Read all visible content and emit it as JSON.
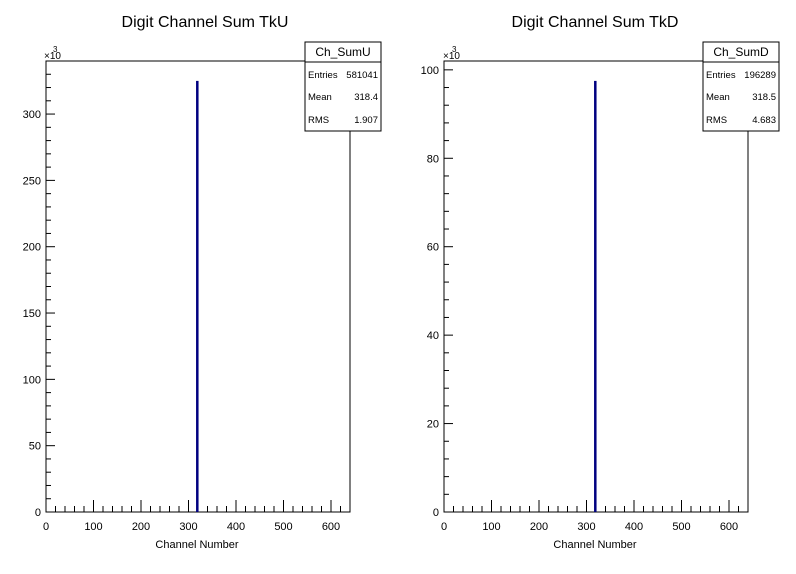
{
  "chart_data": [
    {
      "type": "bar",
      "title": "Digit Channel Sum TkU",
      "xlabel": "Channel Number",
      "ylabel": "",
      "y_multiplier_label": "×10",
      "y_multiplier_exp": "3",
      "xlim": [
        0,
        640
      ],
      "ylim": [
        0,
        340
      ],
      "x_ticks": [
        0,
        100,
        200,
        300,
        400,
        500,
        600
      ],
      "y_ticks": [
        0,
        50,
        100,
        150,
        200,
        250,
        300
      ],
      "series": [
        {
          "x": [
            318
          ],
          "values": [
            325
          ],
          "color": "#000080"
        }
      ],
      "stats": {
        "name": "Ch_SumU",
        "rows": [
          {
            "label": "Entries",
            "value": "581041"
          },
          {
            "label": "Mean",
            "value": "318.4"
          },
          {
            "label": "RMS",
            "value": "1.907"
          }
        ]
      },
      "grid": false,
      "legend": "top-right"
    },
    {
      "type": "bar",
      "title": "Digit Channel Sum TkD",
      "xlabel": "Channel Number",
      "ylabel": "",
      "y_multiplier_label": "×10",
      "y_multiplier_exp": "3",
      "xlim": [
        0,
        640
      ],
      "ylim": [
        0,
        102
      ],
      "x_ticks": [
        0,
        100,
        200,
        300,
        400,
        500,
        600
      ],
      "y_ticks": [
        0,
        20,
        40,
        60,
        80,
        100
      ],
      "series": [
        {
          "x": [
            318
          ],
          "values": [
            97.5
          ],
          "color": "#000080"
        }
      ],
      "stats": {
        "name": "Ch_SumD",
        "rows": [
          {
            "label": "Entries",
            "value": "196289"
          },
          {
            "label": "Mean",
            "value": "318.5"
          },
          {
            "label": "RMS",
            "value": "4.683"
          }
        ]
      },
      "grid": false,
      "legend": "top-right"
    }
  ]
}
